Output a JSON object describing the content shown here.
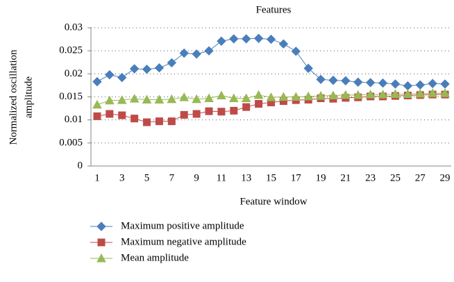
{
  "chart_data": {
    "type": "line",
    "title": "Features",
    "xlabel": "Feature window",
    "ylabel": [
      "Normalized  oscillation",
      "amplitude"
    ],
    "categories": [
      1,
      null,
      3,
      null,
      5,
      null,
      7,
      null,
      9,
      null,
      11,
      null,
      13,
      null,
      15,
      null,
      17,
      null,
      19,
      null,
      21,
      null,
      23,
      null,
      25,
      null,
      27,
      null,
      29
    ],
    "series": [
      {
        "name": "Maximum positive amplitude",
        "color": "#4a7ebb",
        "marker": "diamond",
        "values": [
          0.0183,
          0.0198,
          0.0192,
          0.0211,
          0.021,
          0.0213,
          0.0224,
          0.0245,
          0.0243,
          0.025,
          0.0271,
          0.0276,
          0.0276,
          0.0277,
          0.0275,
          0.0265,
          0.0249,
          0.0212,
          0.0188,
          0.0186,
          0.0185,
          0.0182,
          0.0181,
          0.018,
          0.0178,
          0.0174,
          0.0176,
          0.0179,
          0.0178
        ]
      },
      {
        "name": "Maximum negative amplitude",
        "color": "#be4b48",
        "marker": "square",
        "values": [
          0.0108,
          0.0113,
          0.011,
          0.0103,
          0.0095,
          0.0097,
          0.0097,
          0.0111,
          0.0113,
          0.0119,
          0.0118,
          0.012,
          0.0128,
          0.0135,
          0.0138,
          0.0141,
          0.0143,
          0.0144,
          0.0147,
          0.0146,
          0.0148,
          0.0149,
          0.0151,
          0.0151,
          0.0152,
          0.0153,
          0.0154,
          0.0155,
          0.0155
        ]
      },
      {
        "name": "Mean amplitude",
        "color": "#98b954",
        "marker": "triangle",
        "values": [
          0.0133,
          0.0142,
          0.0143,
          0.0146,
          0.0144,
          0.0144,
          0.0145,
          0.0149,
          0.0145,
          0.0147,
          0.0153,
          0.0147,
          0.0147,
          0.0154,
          0.0149,
          0.015,
          0.015,
          0.0151,
          0.0152,
          0.0153,
          0.0154,
          0.0154,
          0.0155,
          0.0155,
          0.0156,
          0.0156,
          0.0157,
          0.0158,
          0.0158
        ]
      }
    ],
    "ylim": [
      0,
      0.03
    ],
    "yticks": [
      0,
      0.005,
      0.01,
      0.015,
      0.02,
      0.025,
      0.03
    ],
    "grid": true,
    "legend": "bottom"
  }
}
